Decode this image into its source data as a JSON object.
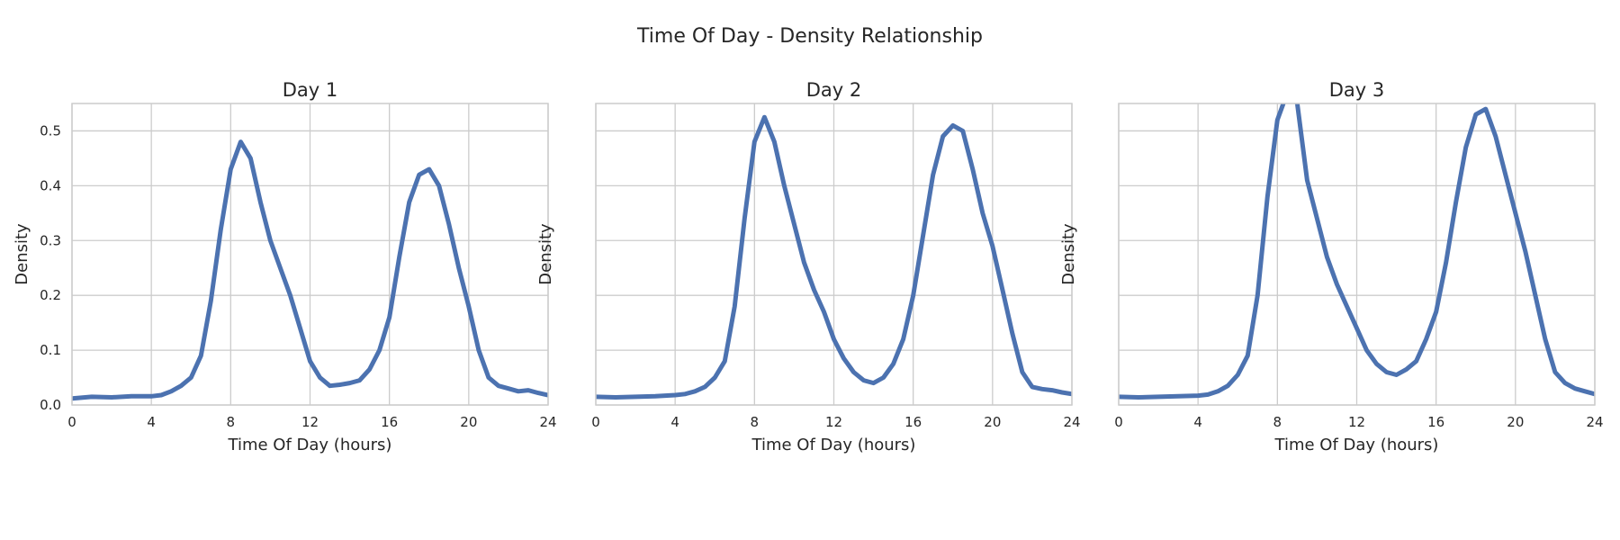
{
  "figure": {
    "title": "Time Of Day - Density Relationship"
  },
  "style": {
    "line_color": "#4c72b0",
    "grid_color": "#cccccc",
    "text_color": "#262626"
  },
  "chart_data": [
    {
      "type": "line",
      "title": "Day 1",
      "xlabel": "Time Of Day (hours)",
      "ylabel": "Density",
      "xlim": [
        0,
        24
      ],
      "ylim": [
        0,
        0.55
      ],
      "xticks": [
        0,
        4,
        8,
        12,
        16,
        20,
        24
      ],
      "yticks": [
        0.0,
        0.1,
        0.2,
        0.3,
        0.4,
        0.5
      ],
      "ytick_labels_shown": true,
      "grid": true,
      "series": [
        {
          "x": [
            0,
            1,
            2,
            3,
            4,
            4.5,
            5,
            5.5,
            6,
            6.5,
            7,
            7.5,
            8,
            8.5,
            9,
            9.5,
            10,
            10.5,
            11,
            11.5,
            12,
            12.5,
            13,
            13.5,
            14,
            14.5,
            15,
            15.5,
            16,
            16.5,
            17,
            17.5,
            18,
            18.5,
            19,
            19.5,
            20,
            20.5,
            21,
            21.5,
            22,
            22.5,
            23,
            23.5,
            24
          ],
          "y": [
            0.012,
            0.015,
            0.014,
            0.016,
            0.016,
            0.018,
            0.025,
            0.035,
            0.05,
            0.09,
            0.19,
            0.32,
            0.43,
            0.48,
            0.45,
            0.37,
            0.3,
            0.25,
            0.2,
            0.14,
            0.08,
            0.05,
            0.035,
            0.037,
            0.04,
            0.045,
            0.065,
            0.1,
            0.16,
            0.27,
            0.37,
            0.42,
            0.43,
            0.4,
            0.33,
            0.25,
            0.18,
            0.1,
            0.05,
            0.035,
            0.03,
            0.025,
            0.027,
            0.022,
            0.018
          ]
        }
      ]
    },
    {
      "type": "line",
      "title": "Day 2",
      "xlabel": "Time Of Day (hours)",
      "ylabel": "Density",
      "xlim": [
        0,
        24
      ],
      "ylim": [
        0,
        0.55
      ],
      "xticks": [
        0,
        4,
        8,
        12,
        16,
        20,
        24
      ],
      "yticks": [
        0.0,
        0.1,
        0.2,
        0.3,
        0.4,
        0.5
      ],
      "ytick_labels_shown": false,
      "grid": true,
      "series": [
        {
          "x": [
            0,
            1,
            2,
            3,
            4,
            4.5,
            5,
            5.5,
            6,
            6.5,
            7,
            7.5,
            8,
            8.5,
            9,
            9.5,
            10,
            10.5,
            11,
            11.5,
            12,
            12.5,
            13,
            13.5,
            14,
            14.5,
            15,
            15.5,
            16,
            16.5,
            17,
            17.5,
            18,
            18.5,
            19,
            19.5,
            20,
            20.5,
            21,
            21.5,
            22,
            22.5,
            23,
            23.5,
            24
          ],
          "y": [
            0.015,
            0.014,
            0.015,
            0.016,
            0.018,
            0.02,
            0.025,
            0.033,
            0.05,
            0.08,
            0.18,
            0.34,
            0.48,
            0.525,
            0.48,
            0.4,
            0.33,
            0.26,
            0.21,
            0.17,
            0.12,
            0.085,
            0.06,
            0.045,
            0.04,
            0.05,
            0.075,
            0.12,
            0.2,
            0.31,
            0.42,
            0.49,
            0.51,
            0.5,
            0.43,
            0.35,
            0.29,
            0.21,
            0.13,
            0.06,
            0.033,
            0.029,
            0.027,
            0.023,
            0.02
          ]
        }
      ]
    },
    {
      "type": "line",
      "title": "Day 3",
      "xlabel": "Time Of Day (hours)",
      "ylabel": "Density",
      "xlim": [
        0,
        24
      ],
      "ylim": [
        0,
        0.55
      ],
      "xticks": [
        0,
        4,
        8,
        12,
        16,
        20,
        24
      ],
      "yticks": [
        0.0,
        0.1,
        0.2,
        0.3,
        0.4,
        0.5
      ],
      "ytick_labels_shown": false,
      "grid": true,
      "series": [
        {
          "x": [
            0,
            1,
            2,
            3,
            4,
            4.5,
            5,
            5.5,
            6,
            6.5,
            7,
            7.5,
            8,
            8.5,
            9,
            9.5,
            10,
            10.5,
            11,
            11.5,
            12,
            12.5,
            13,
            13.5,
            14,
            14.5,
            15,
            15.5,
            16,
            16.5,
            17,
            17.5,
            18,
            18.5,
            19,
            19.5,
            20,
            20.5,
            21,
            21.5,
            22,
            22.5,
            23,
            23.5,
            24
          ],
          "y": [
            0.015,
            0.014,
            0.015,
            0.016,
            0.017,
            0.019,
            0.025,
            0.035,
            0.055,
            0.09,
            0.2,
            0.38,
            0.52,
            0.57,
            0.55,
            0.41,
            0.34,
            0.27,
            0.22,
            0.18,
            0.14,
            0.1,
            0.075,
            0.06,
            0.055,
            0.065,
            0.08,
            0.12,
            0.17,
            0.26,
            0.37,
            0.47,
            0.53,
            0.54,
            0.49,
            0.42,
            0.35,
            0.28,
            0.2,
            0.12,
            0.06,
            0.04,
            0.03,
            0.025,
            0.02
          ]
        }
      ]
    }
  ]
}
